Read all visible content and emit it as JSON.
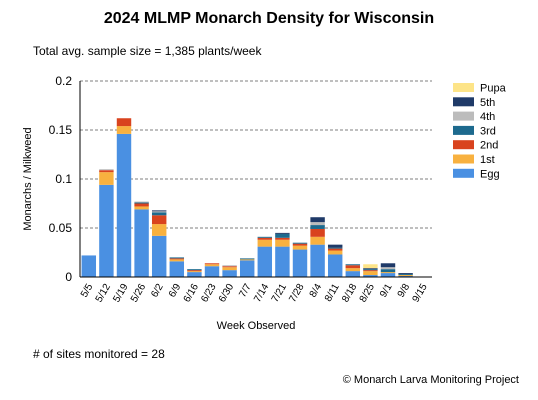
{
  "chart_data": {
    "type": "bar",
    "stacked": true,
    "title": "2024 MLMP Monarch Density for Wisconsin",
    "subtitle": "Total avg. sample size = 1,385 plants/week",
    "xlabel": "Week Observed",
    "ylabel": "Monarchs / Milkweed",
    "ylim": [
      0,
      0.2
    ],
    "yticks": [
      "0",
      "0.05",
      "0.1",
      "0.15",
      "0.2"
    ],
    "grid": "horizontal dashed",
    "legend_position": "right",
    "categories": [
      "5/5",
      "5/12",
      "5/19",
      "5/26",
      "6/2",
      "6/9",
      "6/16",
      "6/23",
      "6/30",
      "7/7",
      "7/14",
      "7/21",
      "7/28",
      "8/4",
      "8/11",
      "8/18",
      "8/25",
      "9/1",
      "9/8",
      "9/15"
    ],
    "series": [
      {
        "name": "Egg",
        "color": "#4a90e2",
        "values": [
          0.022,
          0.094,
          0.146,
          0.069,
          0.042,
          0.016,
          0.005,
          0.011,
          0.007,
          0.017,
          0.031,
          0.031,
          0.028,
          0.033,
          0.023,
          0.006,
          0.002,
          0.004,
          0.001,
          0
        ]
      },
      {
        "name": "1st",
        "color": "#f8b13f",
        "values": [
          0,
          0.013,
          0.008,
          0.003,
          0.012,
          0.002,
          0.001,
          0.002,
          0.003,
          0.001,
          0.007,
          0.007,
          0.004,
          0.008,
          0.004,
          0.003,
          0.004,
          0.001,
          0.001,
          0
        ]
      },
      {
        "name": "2nd",
        "color": "#d9431e",
        "values": [
          0,
          0.002,
          0.008,
          0.003,
          0.009,
          0.001,
          0.001,
          0.001,
          0.001,
          0,
          0.002,
          0.002,
          0.002,
          0.008,
          0.002,
          0.003,
          0.001,
          0,
          0,
          0
        ]
      },
      {
        "name": "3rd",
        "color": "#1d6a8e",
        "values": [
          0,
          0,
          0,
          0.001,
          0.003,
          0.001,
          0.001,
          0,
          0,
          0.001,
          0.001,
          0.004,
          0.001,
          0.004,
          0.001,
          0.001,
          0.001,
          0.003,
          0.001,
          0
        ]
      },
      {
        "name": "4th",
        "color": "#bcbcbc",
        "values": [
          0,
          0.001,
          0,
          0.001,
          0.001,
          0,
          0,
          0,
          0.001,
          0,
          0,
          0,
          0,
          0.003,
          0,
          0,
          0,
          0.002,
          0,
          0
        ]
      },
      {
        "name": "5th",
        "color": "#1f3a68",
        "values": [
          0,
          0,
          0,
          0,
          0.001,
          0,
          0,
          0,
          0,
          0,
          0,
          0.001,
          0,
          0.005,
          0.003,
          0,
          0.001,
          0.004,
          0.001,
          0
        ]
      },
      {
        "name": "Pupa",
        "color": "#fde488",
        "values": [
          0,
          0,
          0,
          0,
          0,
          0,
          0,
          0,
          0,
          0,
          0,
          0,
          0,
          0,
          0,
          0,
          0.004,
          0,
          0,
          0
        ]
      }
    ]
  },
  "footnote": "# of sites monitored = 28",
  "credit": "© Monarch Larva Monitoring Project"
}
